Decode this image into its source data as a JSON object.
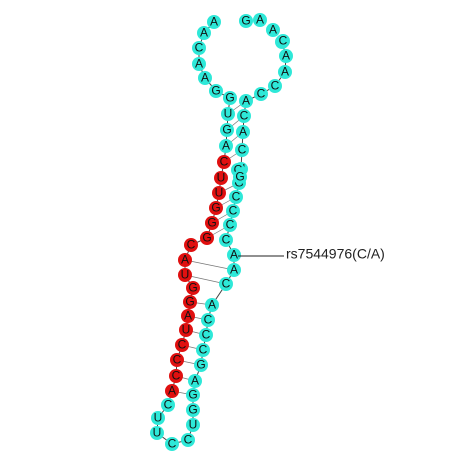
{
  "colors": {
    "background": "#ffffff",
    "normal_base": "#2ee8d8",
    "highlight_base": "#e01010",
    "backbone": "#444444",
    "label": "#111111"
  },
  "structure": {
    "bases": [
      {
        "base": "A",
        "role": "normal"
      },
      {
        "base": "A",
        "role": "normal"
      },
      {
        "base": "C",
        "role": "normal"
      },
      {
        "base": "A",
        "role": "normal"
      },
      {
        "base": "A",
        "role": "normal"
      },
      {
        "base": "G",
        "role": "normal"
      },
      {
        "base": "G",
        "role": "normal"
      },
      {
        "base": "U",
        "role": "normal"
      },
      {
        "base": "G",
        "role": "normal"
      },
      {
        "base": "A",
        "role": "normal"
      },
      {
        "base": "C",
        "role": "highlight"
      },
      {
        "base": "U",
        "role": "highlight"
      },
      {
        "base": "U",
        "role": "highlight"
      },
      {
        "base": "G",
        "role": "highlight"
      },
      {
        "base": "G",
        "role": "highlight"
      },
      {
        "base": "G",
        "role": "highlight"
      },
      {
        "base": "C",
        "role": "highlight"
      },
      {
        "base": "A",
        "role": "highlight"
      },
      {
        "base": "U",
        "role": "highlight"
      },
      {
        "base": "G",
        "role": "highlight"
      },
      {
        "base": "G",
        "role": "highlight"
      },
      {
        "base": "A",
        "role": "highlight"
      },
      {
        "base": "U",
        "role": "highlight"
      },
      {
        "base": "C",
        "role": "highlight"
      },
      {
        "base": "C",
        "role": "highlight"
      },
      {
        "base": "C",
        "role": "highlight"
      },
      {
        "base": "A",
        "role": "highlight"
      },
      {
        "base": "C",
        "role": "normal"
      },
      {
        "base": "U",
        "role": "normal"
      },
      {
        "base": "U",
        "role": "normal"
      },
      {
        "base": "C",
        "role": "normal"
      },
      {
        "base": "C",
        "role": "normal"
      },
      {
        "base": "U",
        "role": "normal"
      },
      {
        "base": "G",
        "role": "normal"
      },
      {
        "base": "G",
        "role": "normal"
      },
      {
        "base": "A",
        "role": "normal"
      },
      {
        "base": "G",
        "role": "normal"
      },
      {
        "base": "C",
        "role": "normal"
      },
      {
        "base": "C",
        "role": "normal"
      },
      {
        "base": "C",
        "role": "normal"
      },
      {
        "base": "A",
        "role": "normal"
      },
      {
        "base": "C",
        "role": "normal"
      },
      {
        "base": "A",
        "role": "normal"
      },
      {
        "base": "A",
        "role": "normal"
      },
      {
        "base": "C",
        "role": "normal"
      },
      {
        "base": "C",
        "role": "normal"
      },
      {
        "base": "C",
        "role": "normal"
      },
      {
        "base": "C",
        "role": "normal"
      },
      {
        "base": "G",
        "role": "normal"
      },
      {
        "base": "U",
        "role": "normal"
      },
      {
        "base": "C",
        "role": "normal"
      },
      {
        "base": "A",
        "role": "normal"
      },
      {
        "base": "C",
        "role": "normal"
      },
      {
        "base": "A",
        "role": "normal"
      },
      {
        "base": "C",
        "role": "normal"
      },
      {
        "base": "C",
        "role": "normal"
      },
      {
        "base": "A",
        "role": "normal"
      },
      {
        "base": "A",
        "role": "normal"
      },
      {
        "base": "G",
        "role": "normal"
      }
    ]
  },
  "snp_annotation": {
    "label": "rs7544976(C/A)"
  }
}
